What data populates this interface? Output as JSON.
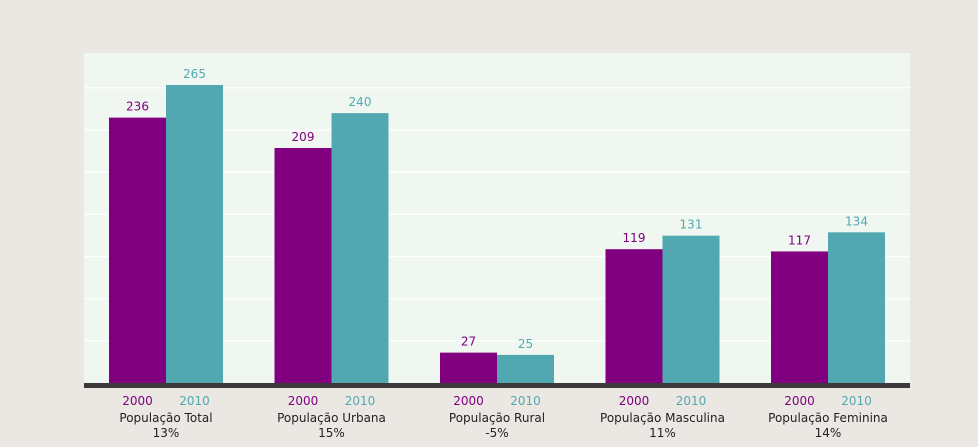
{
  "chart_data": {
    "type": "bar",
    "title": "",
    "xlabel": "",
    "ylabel": "",
    "ylim": [
      0,
      300
    ],
    "grid": true,
    "categories": [
      {
        "name": "População Total",
        "change": "13%"
      },
      {
        "name": "População Urbana",
        "change": "15%"
      },
      {
        "name": "População Rural",
        "change": "-5%"
      },
      {
        "name": "População Masculina",
        "change": "11%"
      },
      {
        "name": "População Feminina",
        "change": "14%"
      }
    ],
    "series": [
      {
        "name": "2000",
        "color": "#800080",
        "values": [
          236,
          209,
          27,
          119,
          117
        ]
      },
      {
        "name": "2010",
        "color": "#52a8b1",
        "values": [
          265,
          240,
          25,
          131,
          134
        ]
      }
    ],
    "colors": {
      "page_background": "#ebe8e3",
      "plot_background": "#f0f7f0",
      "baseline": "#3a3a3a"
    }
  }
}
